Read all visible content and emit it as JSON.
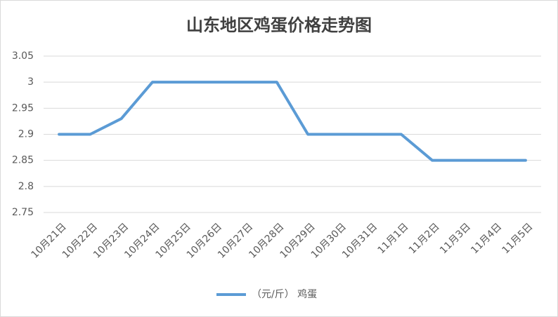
{
  "chart_data": {
    "type": "line",
    "title": "山东地区鸡蛋价格走势图",
    "categories": [
      "10月21日",
      "10月22日",
      "10月23日",
      "10月24日",
      "10月25日",
      "10月26日",
      "10月27日",
      "10月28日",
      "10月29日",
      "10月30日",
      "10月31日",
      "11月1日",
      "11月2日",
      "11月3日",
      "11月4日",
      "11月5日"
    ],
    "series": [
      {
        "name": "（元/斤） 鸡蛋",
        "color": "#5b9bd5",
        "values": [
          2.9,
          2.9,
          2.93,
          3,
          3,
          3,
          3,
          3,
          2.9,
          2.9,
          2.9,
          2.9,
          2.85,
          2.85,
          2.85,
          2.85
        ]
      }
    ],
    "ylim": [
      2.75,
      3.05
    ],
    "yticks": [
      2.75,
      2.8,
      2.85,
      2.9,
      2.95,
      3,
      3.05
    ],
    "grid": true,
    "legend": "bottom"
  }
}
